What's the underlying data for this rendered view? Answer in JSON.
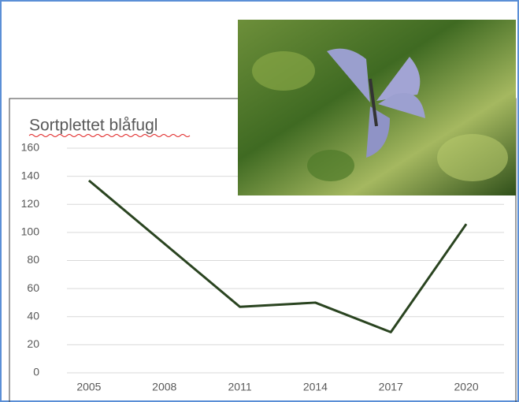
{
  "chart_data": {
    "type": "line",
    "title": "Sortplettet blåfugl",
    "categories": [
      "2005",
      "2008",
      "2011",
      "2014",
      "2017",
      "2020"
    ],
    "values": [
      137,
      92,
      47,
      50,
      29,
      106
    ],
    "color": "#2a4420",
    "ylim": [
      0,
      160
    ],
    "yticks": [
      0,
      20,
      40,
      60,
      80,
      100,
      120,
      140,
      160
    ],
    "grid": true
  }
}
